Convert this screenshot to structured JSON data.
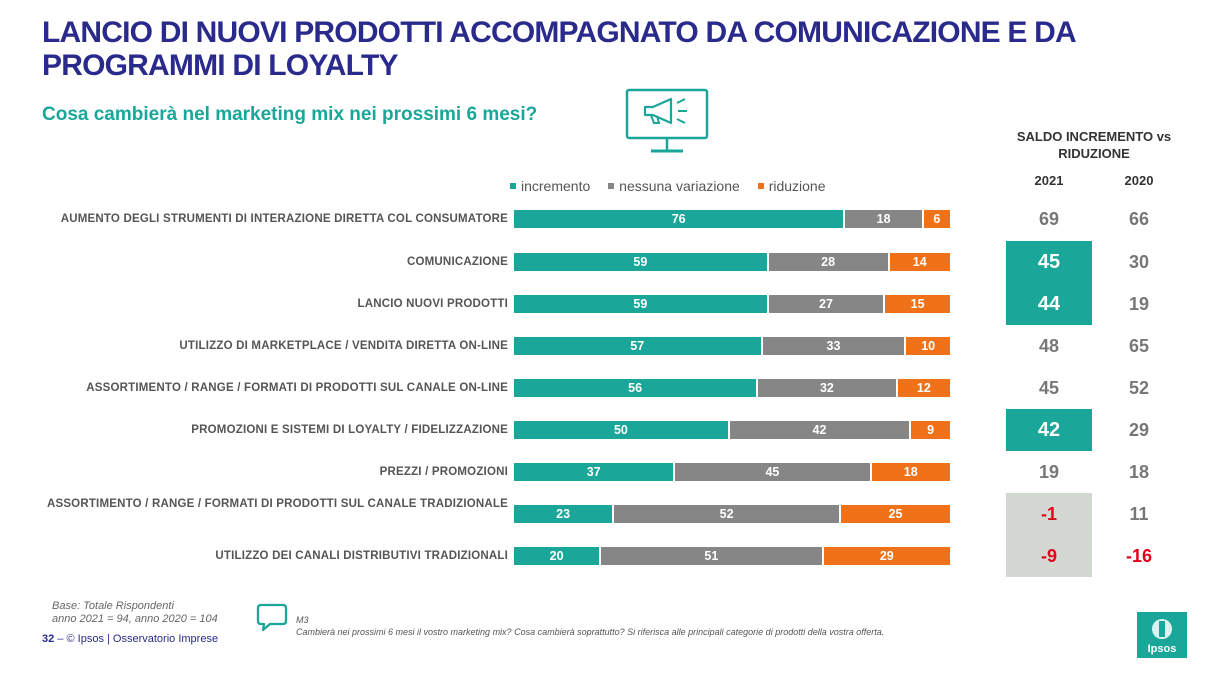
{
  "header": {
    "title": "LANCIO DI NUOVI PRODOTTI ACCOMPAGNATO DA COMUNICAZIONE E DA PROGRAMMI DI LOYALTY",
    "subtitle": "Cosa cambierà nel marketing mix nei prossimi 6 mesi?"
  },
  "icon": "monitor-megaphone-icon",
  "colors": {
    "incremento": "#1aa698",
    "nessuna": "#868686",
    "riduzione": "#f07218",
    "title": "#2a2a8c",
    "negative": "#e3001b"
  },
  "saldo": {
    "header": "SALDO INCREMENTO vs RIDUZIONE",
    "year1": "2021",
    "year2": "2020"
  },
  "chart_data": {
    "type": "bar",
    "orientation": "horizontal",
    "stacked": true,
    "legend_position": "top",
    "categories": [
      "AUMENTO DEGLI STRUMENTI DI INTERAZIONE DIRETTA COL CONSUMATORE",
      "COMUNICAZIONE",
      "LANCIO NUOVI PRODOTTI",
      "UTILIZZO DI MARKETPLACE / VENDITA DIRETTA ON-LINE",
      "ASSORTIMENTO / RANGE / FORMATI DI PRODOTTI SUL CANALE ON-LINE",
      "PROMOZIONI E SISTEMI DI LOYALTY / FIDELIZZAZIONE",
      "PREZZI / PROMOZIONI",
      "ASSORTIMENTO / RANGE / FORMATI DI PRODOTTI SUL CANALE TRADIZIONALE",
      "UTILIZZO DEI CANALI DISTRIBUTIVI TRADIZIONALI"
    ],
    "series": [
      {
        "name": "incremento",
        "values": [
          76,
          59,
          59,
          57,
          56,
          50,
          37,
          23,
          20
        ]
      },
      {
        "name": "nessuna variazione",
        "values": [
          18,
          28,
          27,
          33,
          32,
          42,
          45,
          52,
          51
        ]
      },
      {
        "name": "riduzione",
        "values": [
          6,
          14,
          15,
          10,
          12,
          9,
          18,
          25,
          29
        ]
      }
    ],
    "saldo_2021": [
      69,
      45,
      44,
      48,
      45,
      42,
      19,
      -1,
      -9
    ],
    "saldo_2020": [
      66,
      30,
      19,
      65,
      52,
      29,
      18,
      11,
      -16
    ],
    "highlight_2021": [
      "none",
      "teal",
      "teal",
      "none",
      "none",
      "teal",
      "none",
      "grey",
      "grey"
    ]
  },
  "footer": {
    "base_line1": "Base: Totale Rispondenti",
    "base_line2": "anno 2021 = 94, anno 2020 = 104",
    "page_number": "32",
    "page_separator": "–",
    "copyright": "© Ipsos | Osservatorio Imprese",
    "note_code": "M3",
    "note_text": "Cambierà nei prossimi 6 mesi il vostro marketing mix? Cosa cambierà soprattutto? Si riferisca alle principali categorie di prodotti della vostra offerta.",
    "logo_text": "Ipsos"
  }
}
